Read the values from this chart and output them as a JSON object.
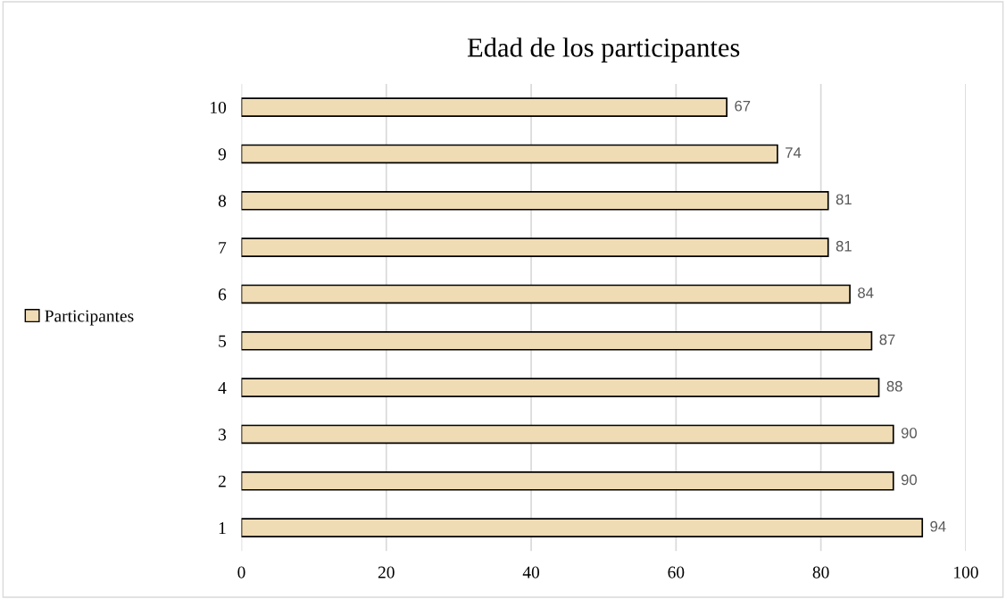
{
  "chart_data": {
    "type": "bar",
    "title": "Edad de los participantes",
    "orientation": "horizontal",
    "categories": [
      "10",
      "9",
      "8",
      "7",
      "6",
      "5",
      "4",
      "3",
      "2",
      "1"
    ],
    "series": [
      {
        "name": "Participantes",
        "color": "#f0dcb4",
        "values": [
          67,
          74,
          81,
          81,
          84,
          87,
          88,
          90,
          90,
          94
        ]
      }
    ],
    "xlim": [
      0,
      100
    ],
    "xticks": [
      0,
      20,
      40,
      60,
      80,
      100
    ],
    "grid": "x",
    "legend": "left",
    "data_labels": true
  }
}
